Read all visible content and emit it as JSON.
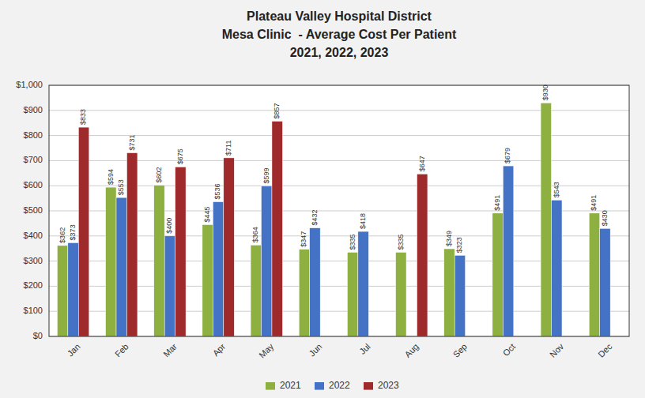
{
  "chart_data": {
    "type": "bar",
    "title": "Plateau Valley Hospital District\nMesa Clinic  - Average Cost Per Patient\n2021, 2022, 2023",
    "categories": [
      "Jan",
      "Feb",
      "Mar",
      "Apr",
      "May",
      "Jun",
      "Jul",
      "Aug",
      "Sep",
      "Oct",
      "Nov",
      "Dec"
    ],
    "series": [
      {
        "name": "2021",
        "color": "#8db040",
        "values": [
          362,
          594,
          602,
          445,
          364,
          347,
          335,
          335,
          349,
          491,
          930,
          491
        ],
        "value_labels": [
          "$362",
          "$594",
          "$602",
          "$445",
          "$364",
          "$347",
          "$335",
          "$335",
          "$349",
          "$491",
          "$930",
          "$491"
        ]
      },
      {
        "name": "2022",
        "color": "#4472c4",
        "values": [
          373,
          553,
          400,
          536,
          599,
          432,
          418,
          null,
          323,
          679,
          543,
          430
        ],
        "value_labels": [
          "$373",
          "$553",
          "$400",
          "$536",
          "$599",
          "$432",
          "$418",
          null,
          "$323",
          "$679",
          "$543",
          "$430"
        ]
      },
      {
        "name": "2023",
        "color": "#9e2a2b",
        "values": [
          833,
          731,
          675,
          711,
          857,
          null,
          null,
          647,
          null,
          null,
          null,
          null
        ],
        "value_labels": [
          "$833",
          "$731",
          "$675",
          "$711",
          "$857",
          null,
          null,
          "$647",
          null,
          null,
          null,
          null
        ]
      }
    ],
    "ylim": [
      0,
      1000
    ],
    "yticks": [
      {
        "value": 0,
        "label": "$0"
      },
      {
        "value": 100,
        "label": "$100"
      },
      {
        "value": 200,
        "label": "$200"
      },
      {
        "value": 300,
        "label": "$300"
      },
      {
        "value": 400,
        "label": "$400"
      },
      {
        "value": 500,
        "label": "$500"
      },
      {
        "value": 600,
        "label": "$600"
      },
      {
        "value": 700,
        "label": "$700"
      },
      {
        "value": 800,
        "label": "$800"
      },
      {
        "value": 900,
        "label": "$900"
      },
      {
        "value": 1000,
        "label": "$1,000"
      }
    ],
    "grid": true,
    "legend": "bottom",
    "data_labels": true
  }
}
